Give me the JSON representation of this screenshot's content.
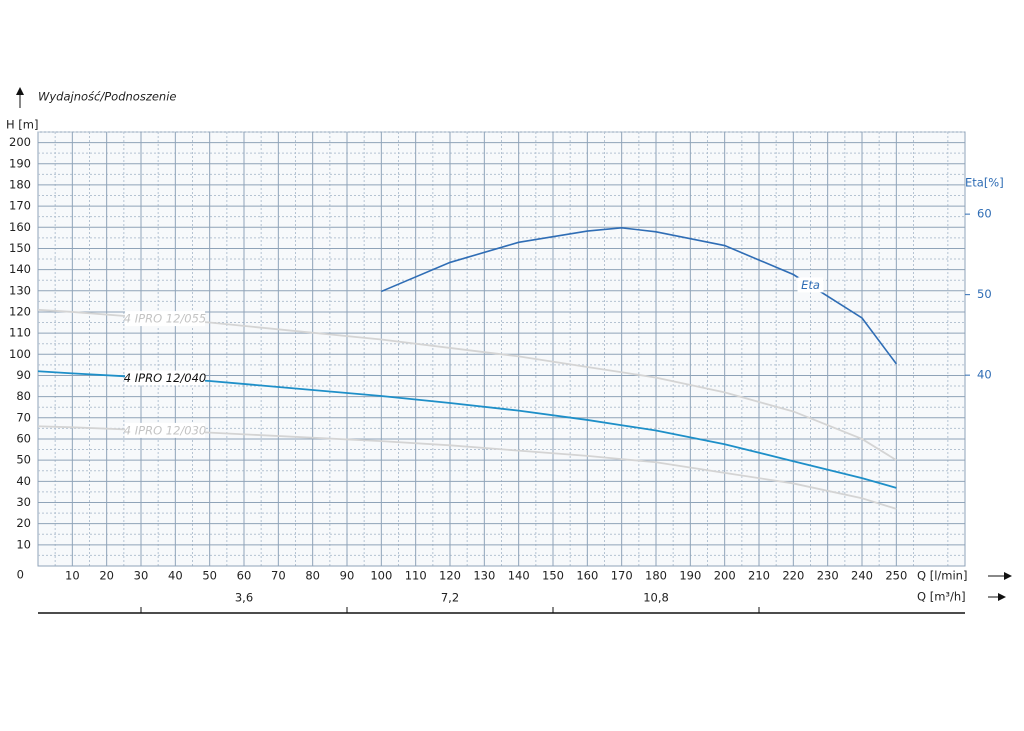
{
  "chart_data": {
    "type": "line",
    "title": "Wydajność/Podnoszenie",
    "y_label": "H [m]",
    "x_label": "Q [l/min]",
    "x2_label": "Q [m³/h]",
    "y2_label": "Eta[%]",
    "x": [
      0,
      10,
      50,
      100,
      120,
      140,
      160,
      170,
      180,
      200,
      220,
      240,
      250
    ],
    "xlim": [
      0,
      270
    ],
    "xticks": [
      10,
      20,
      30,
      40,
      50,
      60,
      70,
      80,
      90,
      100,
      110,
      120,
      130,
      140,
      150,
      160,
      170,
      180,
      190,
      200,
      210,
      220,
      230,
      240,
      250
    ],
    "ylim": [
      0,
      205
    ],
    "yticks": [
      0,
      10,
      20,
      30,
      40,
      50,
      60,
      70,
      80,
      90,
      100,
      110,
      120,
      130,
      140,
      150,
      160,
      170,
      180,
      190,
      200
    ],
    "y2lim": [
      16.3,
      70.2
    ],
    "y2ticks": [
      40,
      50,
      60
    ],
    "x2lim": [
      0,
      16.2
    ],
    "x2ticks": [
      {
        "value": 3.6,
        "label": "3,6"
      },
      {
        "value": 7.2,
        "label": "7,2"
      },
      {
        "value": 10.8,
        "label": "10,8"
      }
    ],
    "x2minorticks": [
      1.8,
      5.4,
      9,
      12.6
    ],
    "grid": true,
    "series": [
      {
        "name": "4 IPRO 12/055",
        "color": "#d4d4d4",
        "values": [
          121,
          120,
          115,
          107,
          103,
          99,
          94,
          91.5,
          89,
          82,
          73,
          60,
          50
        ]
      },
      {
        "name": "4 IPRO 12/040",
        "color": "#1e8fc8",
        "values": [
          92,
          91,
          87.4,
          80.3,
          77,
          73.4,
          69,
          66.5,
          64,
          57.5,
          49.5,
          41.5,
          36.9
        ]
      },
      {
        "name": "4 IPRO 12/030",
        "color": "#d4d4d4",
        "values": [
          66,
          65.5,
          63,
          59,
          57,
          54.5,
          52,
          50.5,
          49,
          44,
          39,
          32,
          27
        ]
      },
      {
        "name": "Eta",
        "color": "#2f6db5",
        "axis": "y2",
        "values": [
          null,
          null,
          null,
          50.4,
          54,
          56.5,
          57.9,
          58.3,
          57.8,
          56.1,
          52.5,
          47.1,
          41.4
        ]
      }
    ]
  }
}
